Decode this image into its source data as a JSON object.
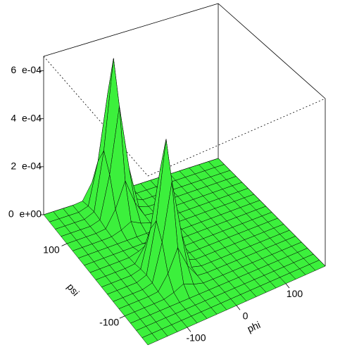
{
  "chart_data": {
    "type": "surface",
    "xlabel": "phi",
    "ylabel": "psi",
    "color": "#3cf03c",
    "xlim": [
      -180,
      180
    ],
    "ylim": [
      -180,
      180
    ],
    "zlim": [
      0,
      0.00066
    ],
    "xticks": [
      -100,
      0,
      100
    ],
    "yticks": [
      -100,
      100
    ],
    "zticks": [
      {
        "value": 0,
        "label": "0  e+00"
      },
      {
        "value": 0.0002,
        "label": "2  e-04"
      },
      {
        "value": 0.0004,
        "label": "4  e-04"
      },
      {
        "value": 0.0006,
        "label": "6  e-04"
      }
    ],
    "x": [
      -180,
      -160,
      -140,
      -120,
      -100,
      -80,
      -60,
      -40,
      -20,
      0,
      20,
      40,
      60,
      80,
      100,
      120,
      140,
      160,
      180
    ],
    "y": [
      -180,
      -160,
      -140,
      -120,
      -100,
      -80,
      -60,
      -40,
      -20,
      0,
      20,
      40,
      60,
      80,
      100,
      120,
      140,
      160,
      180
    ],
    "z": [
      [
        0,
        0,
        0,
        0,
        0,
        0,
        0,
        0,
        0,
        0,
        0,
        0,
        0,
        0,
        0,
        0,
        0,
        0,
        0
      ],
      [
        0,
        0,
        0,
        0,
        0,
        0,
        0,
        0,
        0,
        0,
        0,
        0,
        0,
        0,
        0,
        0,
        0,
        0,
        0
      ],
      [
        0,
        0,
        0,
        0,
        0,
        0,
        0,
        0,
        0,
        0,
        0,
        0,
        0,
        0,
        0,
        0,
        0,
        0,
        0
      ],
      [
        0,
        0,
        0,
        0,
        0,
        0,
        0,
        0,
        0,
        0,
        0,
        0,
        0,
        0,
        0,
        0,
        0,
        0,
        0
      ],
      [
        0,
        0,
        0,
        0,
        1e-06,
        1.2e-05,
        3e-05,
        1.2e-05,
        1e-06,
        0,
        0,
        0,
        0,
        0,
        0,
        0,
        0,
        0,
        0
      ],
      [
        0,
        0,
        0,
        0,
        4e-06,
        6e-05,
        0.000147,
        6e-05,
        4e-06,
        0,
        0,
        0,
        0,
        0,
        0,
        0,
        0,
        0,
        0
      ],
      [
        0,
        0,
        0,
        0,
        1.1e-05,
        0.000158,
        0.000385,
        0.000158,
        1.1e-05,
        0,
        0,
        0,
        0,
        0,
        0,
        0,
        0,
        0,
        0
      ],
      [
        0,
        0,
        0,
        0,
        1.5e-05,
        0.000217,
        0.00053,
        0.000217,
        1.5e-05,
        0,
        0,
        0,
        0,
        0,
        0,
        0,
        0,
        0,
        0
      ],
      [
        0,
        0,
        0,
        0,
        1.1e-05,
        0.000158,
        0.000385,
        0.000158,
        1.1e-05,
        0,
        0,
        0,
        0,
        0,
        0,
        0,
        0,
        0,
        0
      ],
      [
        0,
        0,
        0,
        0,
        4e-06,
        6e-05,
        0.000147,
        6e-05,
        4e-06,
        0,
        0,
        0,
        0,
        0,
        0,
        0,
        0,
        0,
        0
      ],
      [
        0,
        0,
        0,
        0,
        1e-06,
        1.2e-05,
        3e-05,
        1.2e-05,
        1e-06,
        0,
        0,
        0,
        0,
        0,
        0,
        0,
        0,
        0,
        0
      ],
      [
        0,
        0,
        0,
        0,
        0,
        0,
        0,
        0,
        0,
        0,
        0,
        0,
        0,
        0,
        0,
        0,
        0,
        0,
        0
      ],
      [
        0,
        0,
        0,
        0,
        0,
        0,
        0,
        0,
        0,
        0,
        0,
        0,
        0,
        0,
        0,
        0,
        0,
        0,
        0
      ],
      [
        0,
        0,
        0,
        0,
        1e-06,
        1.4e-05,
        3.5e-05,
        1.4e-05,
        1e-06,
        0,
        0,
        0,
        0,
        0,
        0,
        0,
        0,
        0,
        0
      ],
      [
        0,
        0,
        0,
        0,
        5e-06,
        7.2e-05,
        0.000175,
        7.2e-05,
        5e-06,
        0,
        0,
        0,
        0,
        0,
        0,
        0,
        0,
        0,
        0
      ],
      [
        0,
        0,
        0,
        0,
        1.3e-05,
        0.000187,
        0.000457,
        0.000187,
        1.3e-05,
        0,
        0,
        0,
        0,
        0,
        0,
        0,
        0,
        0,
        0
      ],
      [
        0,
        0,
        0,
        0,
        1.8e-05,
        0.000258,
        0.00063,
        0.000258,
        1.8e-05,
        0,
        0,
        0,
        0,
        0,
        0,
        0,
        0,
        0,
        0
      ],
      [
        0,
        0,
        0,
        0,
        1.3e-05,
        0.000187,
        0.000457,
        0.000187,
        1.3e-05,
        0,
        0,
        0,
        0,
        0,
        0,
        0,
        0,
        0,
        0
      ],
      [
        0,
        0,
        0,
        0,
        5e-06,
        7.2e-05,
        0.000175,
        7.2e-05,
        5e-06,
        0,
        0,
        0,
        0,
        0,
        0,
        0,
        0,
        0,
        0
      ]
    ]
  }
}
